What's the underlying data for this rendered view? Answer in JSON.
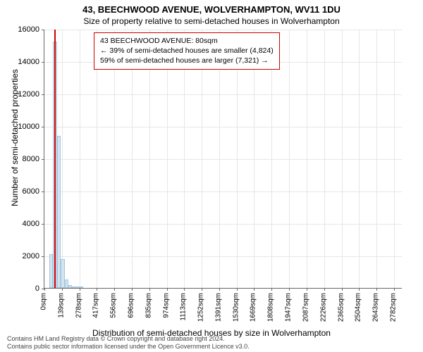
{
  "header": {
    "title": "43, BEECHWOOD AVENUE, WOLVERHAMPTON, WV11 1DU",
    "subtitle": "Size of property relative to semi-detached houses in Wolverhampton"
  },
  "chart": {
    "type": "histogram",
    "bar_color": "#d2e4f0",
    "bar_border_color": "#a8c6de",
    "grid_color": "#e6e6e6",
    "axis_color": "#666666",
    "background_color": "#ffffff",
    "x_max": 2850,
    "y_max": 16000,
    "y_ticks": [
      0,
      2000,
      4000,
      6000,
      8000,
      10000,
      12000,
      14000,
      16000
    ],
    "x_ticks": [
      0,
      139,
      278,
      417,
      556,
      696,
      835,
      974,
      1113,
      1252,
      1391,
      1530,
      1669,
      1808,
      1947,
      2087,
      2226,
      2365,
      2504,
      2643,
      2782
    ],
    "x_tick_suffix": "sqm",
    "y_label": "Number of semi-detached properties",
    "x_label": "Distribution of semi-detached houses by size in Wolverhampton",
    "bars": [
      {
        "x0": 40,
        "x1": 70,
        "y": 2100
      },
      {
        "x0": 70,
        "x1": 100,
        "y": 15200
      },
      {
        "x0": 100,
        "x1": 130,
        "y": 9400
      },
      {
        "x0": 130,
        "x1": 160,
        "y": 1800
      },
      {
        "x0": 160,
        "x1": 190,
        "y": 520
      },
      {
        "x0": 190,
        "x1": 220,
        "y": 180
      },
      {
        "x0": 220,
        "x1": 250,
        "y": 80
      },
      {
        "x0": 250,
        "x1": 280,
        "y": 45
      },
      {
        "x0": 280,
        "x1": 310,
        "y": 25
      }
    ],
    "marker": {
      "x": 80,
      "color": "#cc0000"
    },
    "label_fontsize": 12,
    "tick_fontsize": 11
  },
  "annotation": {
    "line1": "43 BEECHWOOD AVENUE: 80sqm",
    "line2": "← 39% of semi-detached houses are smaller (4,824)",
    "line3": "59% of semi-detached houses are larger (7,321) →",
    "border_color": "#cc0000",
    "fontsize": 10.5
  },
  "footer": {
    "line1": "Contains HM Land Registry data © Crown copyright and database right 2024.",
    "line2": "Contains public sector information licensed under the Open Government Licence v3.0."
  }
}
